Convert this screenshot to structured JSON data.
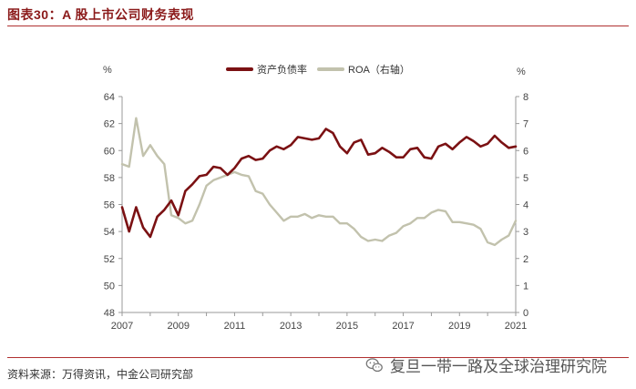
{
  "header": {
    "title": "图表30：A 股上市公司财务表现"
  },
  "footer": {
    "source": "资料来源：万得资讯，中金公司研究部"
  },
  "watermark": {
    "text": "复旦一带一路及全球治理研究院"
  },
  "chart_data": {
    "type": "line",
    "title": "",
    "left_axis": {
      "unit": "%",
      "ylim": [
        48,
        64
      ],
      "ticks": [
        48,
        50,
        52,
        54,
        56,
        58,
        60,
        62,
        64
      ]
    },
    "right_axis": {
      "unit": "%",
      "ylim": [
        0,
        8
      ],
      "ticks": [
        0,
        1,
        2,
        3,
        4,
        5,
        6,
        7,
        8
      ]
    },
    "x_axis": {
      "xlim": [
        2007,
        2021
      ],
      "tick_labels": [
        "2007",
        "2009",
        "2011",
        "2013",
        "2015",
        "2017",
        "2019",
        "2021"
      ]
    },
    "series": [
      {
        "name": "资产负债率",
        "axis": "left",
        "color": "#7b1113",
        "x": [
          2007.0,
          2007.25,
          2007.5,
          2007.75,
          2008.0,
          2008.25,
          2008.5,
          2008.75,
          2009.0,
          2009.25,
          2009.5,
          2009.75,
          2010.0,
          2010.25,
          2010.5,
          2010.75,
          2011.0,
          2011.25,
          2011.5,
          2011.75,
          2012.0,
          2012.25,
          2012.5,
          2012.75,
          2013.0,
          2013.25,
          2013.5,
          2013.75,
          2014.0,
          2014.25,
          2014.5,
          2014.75,
          2015.0,
          2015.25,
          2015.5,
          2015.75,
          2016.0,
          2016.25,
          2016.5,
          2016.75,
          2017.0,
          2017.25,
          2017.5,
          2017.75,
          2018.0,
          2018.25,
          2018.5,
          2018.75,
          2019.0,
          2019.25,
          2019.5,
          2019.75,
          2020.0,
          2020.25,
          2020.5,
          2020.75,
          2021.0
        ],
        "values": [
          55.8,
          54.0,
          55.8,
          54.3,
          53.6,
          55.1,
          55.6,
          56.3,
          55.2,
          57.0,
          57.5,
          58.1,
          58.2,
          58.8,
          58.7,
          58.2,
          58.7,
          59.4,
          59.6,
          59.3,
          59.4,
          60.0,
          60.3,
          60.1,
          60.4,
          61.0,
          60.9,
          60.8,
          60.9,
          61.6,
          61.3,
          60.3,
          59.8,
          60.6,
          60.8,
          59.7,
          59.8,
          60.2,
          59.9,
          59.5,
          59.5,
          60.1,
          60.2,
          59.5,
          59.4,
          60.3,
          60.5,
          60.1,
          60.6,
          61.0,
          60.7,
          60.3,
          60.5,
          61.1,
          60.6,
          60.2,
          60.3
        ]
      },
      {
        "name": "ROA（右轴）",
        "axis": "right",
        "color": "#c2c2ad",
        "x": [
          2007.0,
          2007.25,
          2007.5,
          2007.75,
          2008.0,
          2008.25,
          2008.5,
          2008.75,
          2009.0,
          2009.25,
          2009.5,
          2009.75,
          2010.0,
          2010.25,
          2010.5,
          2010.75,
          2011.0,
          2011.25,
          2011.5,
          2011.75,
          2012.0,
          2012.25,
          2012.5,
          2012.75,
          2013.0,
          2013.25,
          2013.5,
          2013.75,
          2014.0,
          2014.25,
          2014.5,
          2014.75,
          2015.0,
          2015.25,
          2015.5,
          2015.75,
          2016.0,
          2016.25,
          2016.5,
          2016.75,
          2017.0,
          2017.25,
          2017.5,
          2017.75,
          2018.0,
          2018.25,
          2018.5,
          2018.75,
          2019.0,
          2019.25,
          2019.5,
          2019.75,
          2020.0,
          2020.25,
          2020.5,
          2020.75,
          2021.0
        ],
        "values": [
          5.5,
          5.4,
          7.2,
          5.8,
          6.2,
          5.8,
          5.5,
          3.6,
          3.5,
          3.3,
          3.4,
          4.0,
          4.7,
          4.9,
          5.0,
          5.1,
          5.2,
          5.1,
          5.05,
          4.5,
          4.4,
          4.0,
          3.7,
          3.4,
          3.55,
          3.55,
          3.65,
          3.5,
          3.6,
          3.55,
          3.55,
          3.3,
          3.3,
          3.1,
          2.8,
          2.65,
          2.7,
          2.65,
          2.85,
          2.95,
          3.2,
          3.3,
          3.5,
          3.5,
          3.7,
          3.8,
          3.75,
          3.35,
          3.35,
          3.3,
          3.25,
          3.1,
          2.6,
          2.5,
          2.7,
          2.85,
          3.4
        ]
      }
    ],
    "legend": {
      "position": "top-center"
    }
  }
}
